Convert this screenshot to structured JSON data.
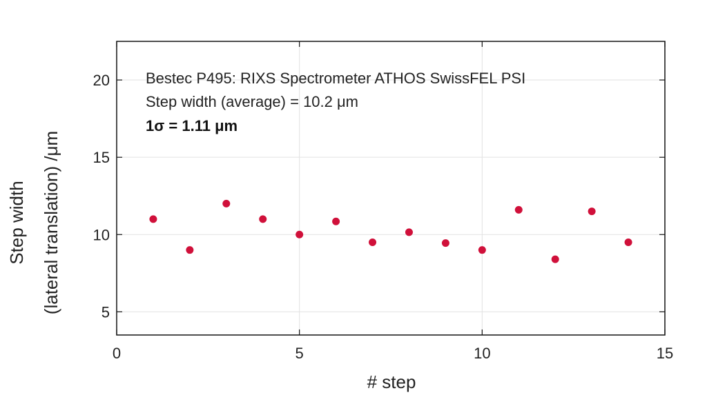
{
  "chart_data": {
    "type": "scatter",
    "title": "",
    "xlabel": "# step",
    "ylabel_lines": [
      "Step width",
      "(lateral translation) /μm"
    ],
    "xlim": [
      0,
      15
    ],
    "ylim": [
      3.5,
      22.5
    ],
    "xticks": [
      0,
      5,
      10,
      15
    ],
    "yticks": [
      5,
      10,
      15,
      20
    ],
    "grid": true,
    "marker_color": "#d0103a",
    "annotations": [
      "Bestec P495: RIXS Spectrometer ATHOS SwissFEL PSI",
      "Step width (average) = 10.2 μm",
      "1σ = 1.11 μm"
    ],
    "x": [
      1,
      2,
      3,
      4,
      5,
      6,
      7,
      8,
      9,
      10,
      11,
      12,
      13,
      14
    ],
    "y": [
      11.0,
      9.0,
      12.0,
      11.0,
      10.0,
      10.85,
      9.5,
      10.15,
      9.45,
      9.0,
      11.6,
      8.4,
      11.5,
      9.5
    ]
  }
}
